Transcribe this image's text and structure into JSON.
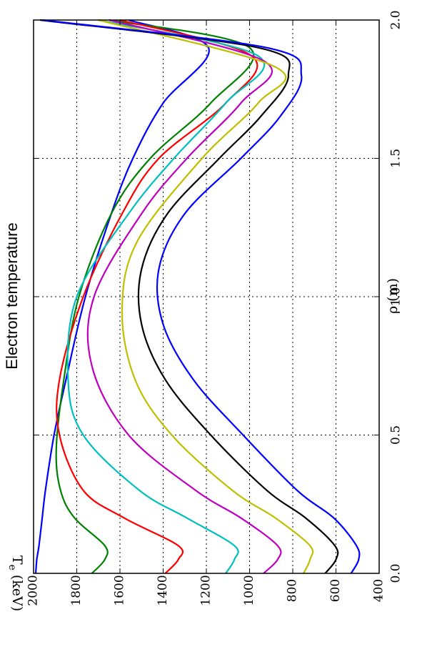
{
  "chart_data": {
    "type": "line",
    "title": "Electron temperature",
    "xlabel": "ρ (m)",
    "ylabel": "T_e (keV)",
    "xlim": [
      0.0,
      2.0
    ],
    "ylim": [
      400,
      2000
    ],
    "x_ticks": [
      "0.0",
      "0.5",
      "1.0",
      "1.5",
      "2.0"
    ],
    "y_ticks": [
      "400",
      "600",
      "800",
      "1000",
      "1200",
      "1400",
      "1600",
      "1800",
      "2000"
    ],
    "grid": true,
    "orientation": "rotated-90-clockwise",
    "series": [
      {
        "color": "#0000ff",
        "x": [
          0.0,
          0.05,
          0.1,
          0.2,
          0.3,
          0.5,
          0.7,
          1.0,
          1.3,
          1.5,
          1.7,
          1.9,
          2.0
        ],
        "values": [
          1990,
          1985,
          1975,
          1960,
          1945,
          1905,
          1850,
          1760,
          1640,
          1540,
          1400,
          1190,
          1560
        ]
      },
      {
        "color": "#008000",
        "x": [
          0.0,
          0.05,
          0.1,
          0.2,
          0.3,
          0.45,
          0.7,
          1.0,
          1.3,
          1.5,
          1.7,
          1.9,
          2.0
        ],
        "values": [
          1730,
          1670,
          1670,
          1810,
          1875,
          1895,
          1860,
          1790,
          1640,
          1460,
          1180,
          1000,
          1650
        ]
      },
      {
        "color": "#ff0000",
        "x": [
          0.0,
          0.05,
          0.1,
          0.2,
          0.3,
          0.5,
          0.7,
          1.0,
          1.3,
          1.5,
          1.7,
          1.87,
          2.0
        ],
        "values": [
          1390,
          1330,
          1330,
          1580,
          1770,
          1880,
          1880,
          1770,
          1590,
          1420,
          1110,
          990,
          1600
        ]
      },
      {
        "color": "#00bfbf",
        "x": [
          0.0,
          0.05,
          0.1,
          0.2,
          0.3,
          0.5,
          0.7,
          1.0,
          1.3,
          1.5,
          1.7,
          1.87,
          2.0
        ],
        "values": [
          1110,
          1070,
          1070,
          1290,
          1510,
          1770,
          1840,
          1800,
          1560,
          1350,
          1110,
          960,
          1700
        ]
      },
      {
        "color": "#bf00bf",
        "x": [
          0.0,
          0.05,
          0.1,
          0.2,
          0.3,
          0.5,
          0.75,
          1.0,
          1.3,
          1.5,
          1.7,
          1.85,
          2.0
        ],
        "values": [
          935,
          870,
          870,
          1040,
          1250,
          1560,
          1730,
          1720,
          1500,
          1290,
          1040,
          930,
          1650
        ]
      },
      {
        "color": "#bfbf00",
        "x": [
          0.0,
          0.05,
          0.1,
          0.2,
          0.3,
          0.5,
          0.7,
          0.95,
          1.2,
          1.5,
          1.7,
          1.83,
          2.0
        ],
        "values": [
          750,
          720,
          720,
          880,
          1080,
          1360,
          1530,
          1590,
          1520,
          1220,
          960,
          880,
          1700
        ]
      },
      {
        "color": "#000000",
        "x": [
          0.0,
          0.05,
          0.1,
          0.2,
          0.3,
          0.5,
          0.7,
          0.9,
          1.1,
          1.3,
          1.5,
          1.65,
          1.8,
          1.9,
          2.0
        ],
        "values": [
          650,
          600,
          605,
          740,
          920,
          1180,
          1390,
          1500,
          1500,
          1380,
          1140,
          950,
          820,
          960,
          1970
        ]
      },
      {
        "color": "#0000ff",
        "x": [
          0.0,
          0.05,
          0.1,
          0.2,
          0.3,
          0.5,
          0.7,
          0.9,
          1.1,
          1.3,
          1.5,
          1.65,
          1.8,
          1.9,
          2.0
        ],
        "values": [
          530,
          495,
          505,
          610,
          780,
          1030,
          1260,
          1400,
          1420,
          1300,
          1040,
          860,
          760,
          920,
          1960
        ]
      }
    ]
  }
}
